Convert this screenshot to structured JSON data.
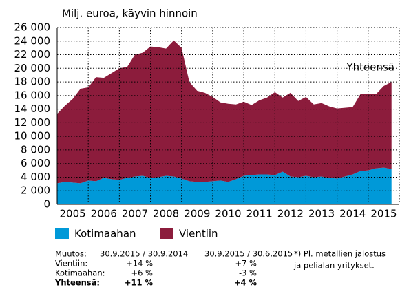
{
  "chart_data": {
    "type": "stacked_area",
    "title": "Milj. euroa, käyvin hinnoin",
    "annotation": "Yhteensä",
    "x": [
      2005,
      2005.25,
      2005.5,
      2005.75,
      2006,
      2006.25,
      2006.5,
      2006.75,
      2007,
      2007.25,
      2007.5,
      2007.75,
      2008,
      2008.25,
      2008.5,
      2008.75,
      2009,
      2009.25,
      2009.5,
      2009.75,
      2010,
      2010.25,
      2010.5,
      2010.75,
      2011,
      2011.25,
      2011.5,
      2011.75,
      2012,
      2012.25,
      2012.5,
      2012.75,
      2013,
      2013.25,
      2013.5,
      2013.75,
      2014,
      2014.25,
      2014.5,
      2014.75,
      2015,
      2015.25,
      2015.5,
      2015.75
    ],
    "series": [
      {
        "name": "Kotimaahan",
        "color": "#0099d8",
        "values": [
          3100,
          3300,
          3200,
          3100,
          3500,
          3400,
          3900,
          3700,
          3600,
          3900,
          4100,
          4200,
          3900,
          4000,
          4200,
          4100,
          3800,
          3400,
          3300,
          3300,
          3400,
          3500,
          3300,
          3700,
          4200,
          4300,
          4400,
          4400,
          4300,
          4800,
          4100,
          4000,
          4200,
          4000,
          4100,
          3900,
          3800,
          4100,
          4400,
          4900,
          5000,
          5300,
          5400,
          5200
        ]
      },
      {
        "name": "Vientiin",
        "color": "#8c1c3c",
        "values": [
          10200,
          11200,
          12300,
          13900,
          13700,
          15300,
          14700,
          15600,
          16400,
          16300,
          17900,
          18100,
          19300,
          19100,
          18700,
          20000,
          19200,
          14600,
          13400,
          13100,
          12400,
          11500,
          11500,
          11000,
          10900,
          10300,
          10900,
          11300,
          12200,
          10900,
          12300,
          11200,
          11600,
          10700,
          10800,
          10500,
          10300,
          10100,
          9900,
          11300,
          11300,
          10900,
          12000,
          12800
        ]
      }
    ],
    "xlim": [
      2005,
      2016
    ],
    "xticks": [
      {
        "value": 2005.5,
        "label": "2005"
      },
      {
        "value": 2006.5,
        "label": "2006"
      },
      {
        "value": 2007.5,
        "label": "2007"
      },
      {
        "value": 2008.5,
        "label": "2008"
      },
      {
        "value": 2009.5,
        "label": "2009"
      },
      {
        "value": 2010.5,
        "label": "2010"
      },
      {
        "value": 2011.5,
        "label": "2011"
      },
      {
        "value": 2012.5,
        "label": "2012"
      },
      {
        "value": 2013.5,
        "label": "2013"
      },
      {
        "value": 2014.5,
        "label": "2014"
      },
      {
        "value": 2015.5,
        "label": "2015"
      }
    ],
    "xgrid": [
      2006,
      2007,
      2008,
      2009,
      2010,
      2011,
      2012,
      2013,
      2014,
      2015,
      2016
    ],
    "ylim": [
      0,
      26000
    ],
    "yticks": [
      0,
      {
        "value": 2000,
        "label": "2 000"
      },
      {
        "value": 4000,
        "label": "4 000"
      },
      {
        "value": 6000,
        "label": "6 000"
      },
      {
        "value": 8000,
        "label": "8 000"
      },
      {
        "value": 10000,
        "label": "10 000"
      },
      {
        "value": 12000,
        "label": "12 000"
      },
      {
        "value": 14000,
        "label": "14 000"
      },
      {
        "value": 16000,
        "label": "16 000"
      },
      {
        "value": 18000,
        "label": "18 000"
      },
      {
        "value": 20000,
        "label": "20 000"
      },
      {
        "value": 22000,
        "label": "22 000"
      },
      {
        "value": 24000,
        "label": "24 000"
      },
      {
        "value": 26000,
        "label": "26 000"
      }
    ],
    "grid": true
  },
  "table": {
    "rows": [
      [
        "Muutos:",
        "30.9.2015 / 30.9.2014",
        "30.9.2015 / 30.6.2015"
      ],
      [
        "Vientiin:",
        "+14 %",
        "+7 %"
      ],
      [
        "Kotimaahan:",
        "+6 %",
        "-3 %"
      ],
      [
        "Yhteensä:",
        "+11 %",
        "+4 %"
      ]
    ]
  },
  "footnote": [
    "*) Pl. metallien jalostus",
    "ja pelialan yritykset."
  ]
}
